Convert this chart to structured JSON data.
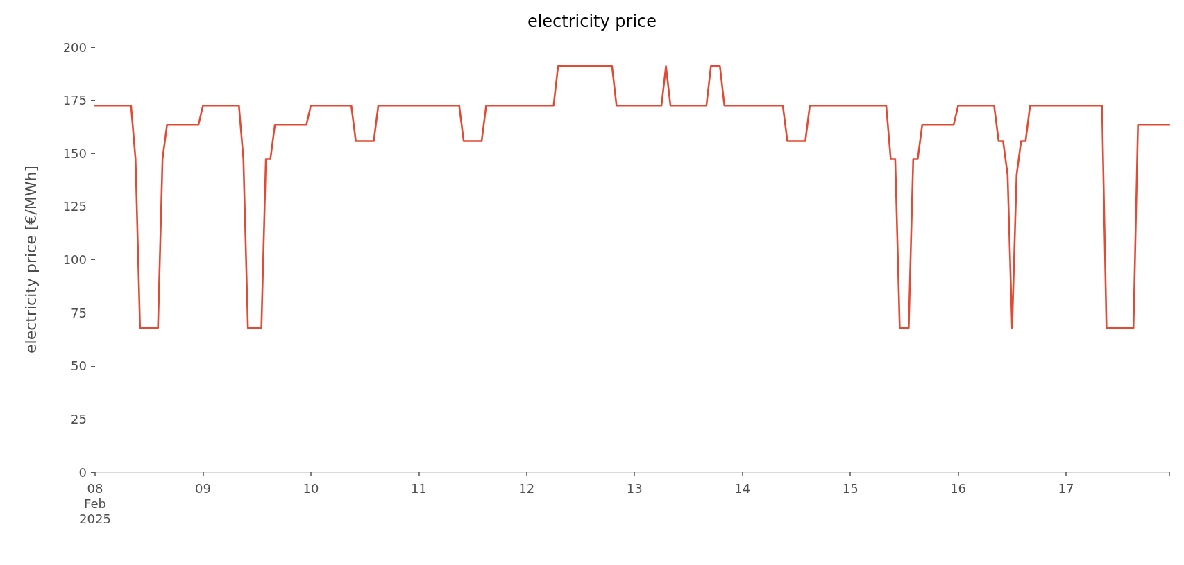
{
  "chart_data": {
    "type": "line",
    "title": "electricity price",
    "ylabel": "electricity price [€/MWh]",
    "x": [
      "2025-02-08T00:00",
      "2025-02-08T08:00",
      "2025-02-08T09:00",
      "2025-02-08T10:00",
      "2025-02-08T14:00",
      "2025-02-08T15:00",
      "2025-02-08T16:00",
      "2025-02-08T23:00",
      "2025-02-09T00:00",
      "2025-02-09T08:00",
      "2025-02-09T09:00",
      "2025-02-09T10:00",
      "2025-02-09T13:00",
      "2025-02-09T14:00",
      "2025-02-09T15:00",
      "2025-02-09T16:00",
      "2025-02-09T23:00",
      "2025-02-10T00:00",
      "2025-02-10T09:00",
      "2025-02-10T10:00",
      "2025-02-10T14:00",
      "2025-02-10T15:00",
      "2025-02-11T09:00",
      "2025-02-11T10:00",
      "2025-02-11T14:00",
      "2025-02-11T15:00",
      "2025-02-12T06:00",
      "2025-02-12T07:00",
      "2025-02-12T19:00",
      "2025-02-12T20:00",
      "2025-02-13T06:00",
      "2025-02-13T07:00",
      "2025-02-13T08:00",
      "2025-02-13T16:00",
      "2025-02-13T17:00",
      "2025-02-13T19:00",
      "2025-02-13T20:00",
      "2025-02-14T09:00",
      "2025-02-14T10:00",
      "2025-02-14T14:00",
      "2025-02-14T15:00",
      "2025-02-15T08:00",
      "2025-02-15T09:00",
      "2025-02-15T10:00",
      "2025-02-15T11:00",
      "2025-02-15T13:00",
      "2025-02-15T14:00",
      "2025-02-15T15:00",
      "2025-02-15T16:00",
      "2025-02-15T23:00",
      "2025-02-16T00:00",
      "2025-02-16T08:00",
      "2025-02-16T09:00",
      "2025-02-16T10:00",
      "2025-02-16T11:00",
      "2025-02-16T12:00",
      "2025-02-16T13:00",
      "2025-02-16T14:00",
      "2025-02-16T15:00",
      "2025-02-16T16:00",
      "2025-02-17T08:00",
      "2025-02-17T09:00",
      "2025-02-17T15:00",
      "2025-02-17T16:00",
      "2025-02-17T23:00"
    ],
    "series": [
      {
        "color": "#e24a33",
        "values": [
          172.5,
          172.5,
          147.3,
          67.9,
          67.9,
          147.3,
          163.4,
          163.4,
          172.5,
          172.5,
          147.3,
          67.9,
          67.9,
          147.3,
          147.3,
          163.4,
          163.4,
          172.5,
          172.5,
          155.8,
          155.8,
          172.5,
          172.5,
          155.8,
          155.8,
          172.5,
          172.5,
          191.1,
          191.1,
          172.5,
          172.5,
          191.1,
          172.5,
          172.5,
          191.1,
          191.1,
          172.5,
          172.5,
          155.8,
          155.8,
          172.5,
          172.5,
          147.3,
          147.3,
          67.9,
          67.9,
          147.3,
          147.3,
          163.4,
          163.4,
          172.5,
          172.5,
          155.8,
          155.8,
          139.8,
          67.9,
          139.8,
          155.8,
          155.8,
          172.5,
          172.5,
          67.9,
          67.9,
          163.4,
          163.4
        ]
      }
    ],
    "xlim": [
      "2025-02-08T00:00",
      "2025-02-17T23:00"
    ],
    "xticks": [
      {
        "value": "2025-02-08T00:00",
        "label": "08\nFeb\n2025"
      },
      {
        "value": "2025-02-09T00:00",
        "label": "09"
      },
      {
        "value": "2025-02-10T00:00",
        "label": "10"
      },
      {
        "value": "2025-02-11T00:00",
        "label": "11"
      },
      {
        "value": "2025-02-12T00:00",
        "label": "12"
      },
      {
        "value": "2025-02-13T00:00",
        "label": "13"
      },
      {
        "value": "2025-02-14T00:00",
        "label": "14"
      },
      {
        "value": "2025-02-15T00:00",
        "label": "15"
      },
      {
        "value": "2025-02-16T00:00",
        "label": "16"
      },
      {
        "value": "2025-02-17T00:00",
        "label": "17"
      },
      {
        "value": "2025-02-17T23:00",
        "label": null
      }
    ],
    "ylim": [
      0,
      200
    ],
    "yticks": [
      0,
      25,
      50,
      75,
      100,
      125,
      150,
      175,
      200
    ],
    "marker": "none",
    "line_style": "solid"
  }
}
